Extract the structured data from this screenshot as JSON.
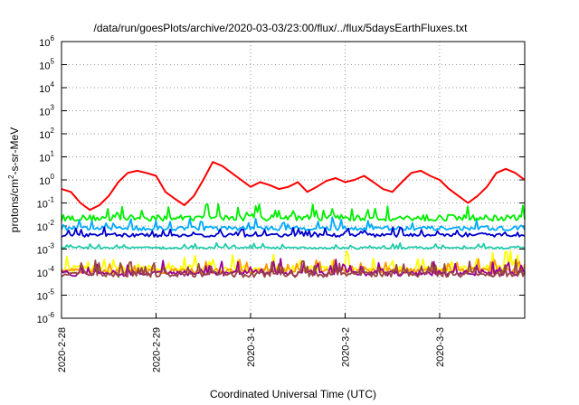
{
  "chart_data": {
    "type": "line",
    "title": "/data/run/goesPlots/archive/2020-03-03/23:00/flux/../flux/5daysEarthFluxes.txt",
    "xlabel": "Coordinated Universal Time (UTC)",
    "ylabel": {
      "base": "protons/cm",
      "sup": "2",
      "rest": "-s-sr-MeV"
    },
    "y_scale": "log",
    "ylim_exponents": [
      -6,
      6
    ],
    "y_ticks": [
      {
        "base": "10",
        "exp": "-6",
        "value": -6
      },
      {
        "base": "10",
        "exp": "-5",
        "value": -5
      },
      {
        "base": "10",
        "exp": "-4",
        "value": -4
      },
      {
        "base": "10",
        "exp": "-3",
        "value": -3
      },
      {
        "base": "10",
        "exp": "-2",
        "value": -2
      },
      {
        "base": "10",
        "exp": "-1",
        "value": -1
      },
      {
        "base": "10",
        "exp": "0",
        "value": 0
      },
      {
        "base": "10",
        "exp": "1",
        "value": 1
      },
      {
        "base": "10",
        "exp": "2",
        "value": 2
      },
      {
        "base": "10",
        "exp": "3",
        "value": 3
      },
      {
        "base": "10",
        "exp": "4",
        "value": 4
      },
      {
        "base": "10",
        "exp": "5",
        "value": 5
      },
      {
        "base": "10",
        "exp": "6",
        "value": 6
      }
    ],
    "x_range_days": [
      0,
      4.9
    ],
    "x_ticks": [
      {
        "label": "2020-2-28",
        "day": 0
      },
      {
        "label": "2020-2-29",
        "day": 1
      },
      {
        "label": "2020-3-1",
        "day": 2
      },
      {
        "label": "2020-3-2",
        "day": 3
      },
      {
        "label": "2020-3-3",
        "day": 4
      }
    ],
    "grid": true,
    "series": [
      {
        "color": "#ff0000",
        "x": [
          0,
          0.1,
          0.2,
          0.3,
          0.4,
          0.5,
          0.6,
          0.7,
          0.8,
          0.9,
          1,
          1.1,
          1.2,
          1.3,
          1.4,
          1.5,
          1.6,
          1.7,
          1.8,
          1.9,
          2,
          2.1,
          2.2,
          2.3,
          2.4,
          2.5,
          2.6,
          2.7,
          2.8,
          2.9,
          3,
          3.1,
          3.2,
          3.3,
          3.4,
          3.5,
          3.6,
          3.7,
          3.8,
          3.9,
          4,
          4.1,
          4.2,
          4.3,
          4.4,
          4.5,
          4.6,
          4.7,
          4.8,
          4.9
        ],
        "y": [
          0.4,
          0.3,
          0.1,
          0.05,
          0.08,
          0.2,
          0.8,
          2,
          2.5,
          2,
          1.5,
          0.3,
          0.15,
          0.08,
          0.2,
          1,
          6,
          4,
          2,
          1,
          0.5,
          0.8,
          0.6,
          0.4,
          0.5,
          0.8,
          0.3,
          0.5,
          0.9,
          1.2,
          0.8,
          1,
          1.5,
          0.8,
          0.4,
          0.3,
          0.8,
          2,
          2.5,
          1.5,
          1,
          0.4,
          0.2,
          0.1,
          0.2,
          0.5,
          2,
          3,
          2,
          1
        ]
      },
      {
        "color": "#00ee00",
        "base_exponent": -1.65,
        "spread": 0.45
      },
      {
        "color": "#00aaff",
        "base_exponent": -2.1,
        "spread": 0.3
      },
      {
        "color": "#0000cc",
        "base_exponent": -2.4,
        "spread": 0.25
      },
      {
        "color": "#22ccaa",
        "base_exponent": -2.95,
        "spread": 0.15
      },
      {
        "color": "#ffff00",
        "base_exponent": -3.85,
        "spread": 0.5
      },
      {
        "color": "#ff9900",
        "base_exponent": -3.95,
        "spread": 0.35
      },
      {
        "color": "#990099",
        "base_exponent": -4.05,
        "spread": 0.4
      },
      {
        "color": "#994444",
        "base_exponent": -4.1,
        "spread": 0.4
      }
    ]
  }
}
